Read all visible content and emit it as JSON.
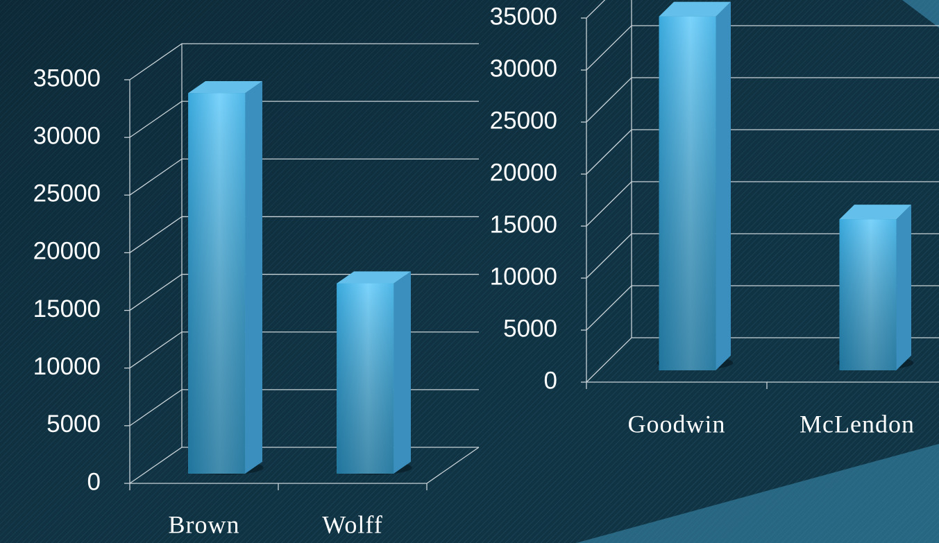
{
  "chart_data": [
    {
      "type": "bar3d",
      "categories": [
        "Brown",
        "Wolff"
      ],
      "values": [
        33000,
        16500
      ],
      "color": "#5bc8f5",
      "ylim": [
        0,
        35000
      ],
      "yticks": [
        0,
        5000,
        10000,
        15000,
        20000,
        25000,
        30000,
        35000
      ],
      "grid": true
    },
    {
      "type": "bar3d",
      "categories": [
        "Goodwin",
        "McLendon"
      ],
      "values": [
        34000,
        14500
      ],
      "color": "#5bc8f5",
      "ylim": [
        0,
        35000
      ],
      "yticks": [
        0,
        5000,
        10000,
        15000,
        20000,
        25000,
        30000,
        35000
      ],
      "grid": true
    }
  ]
}
